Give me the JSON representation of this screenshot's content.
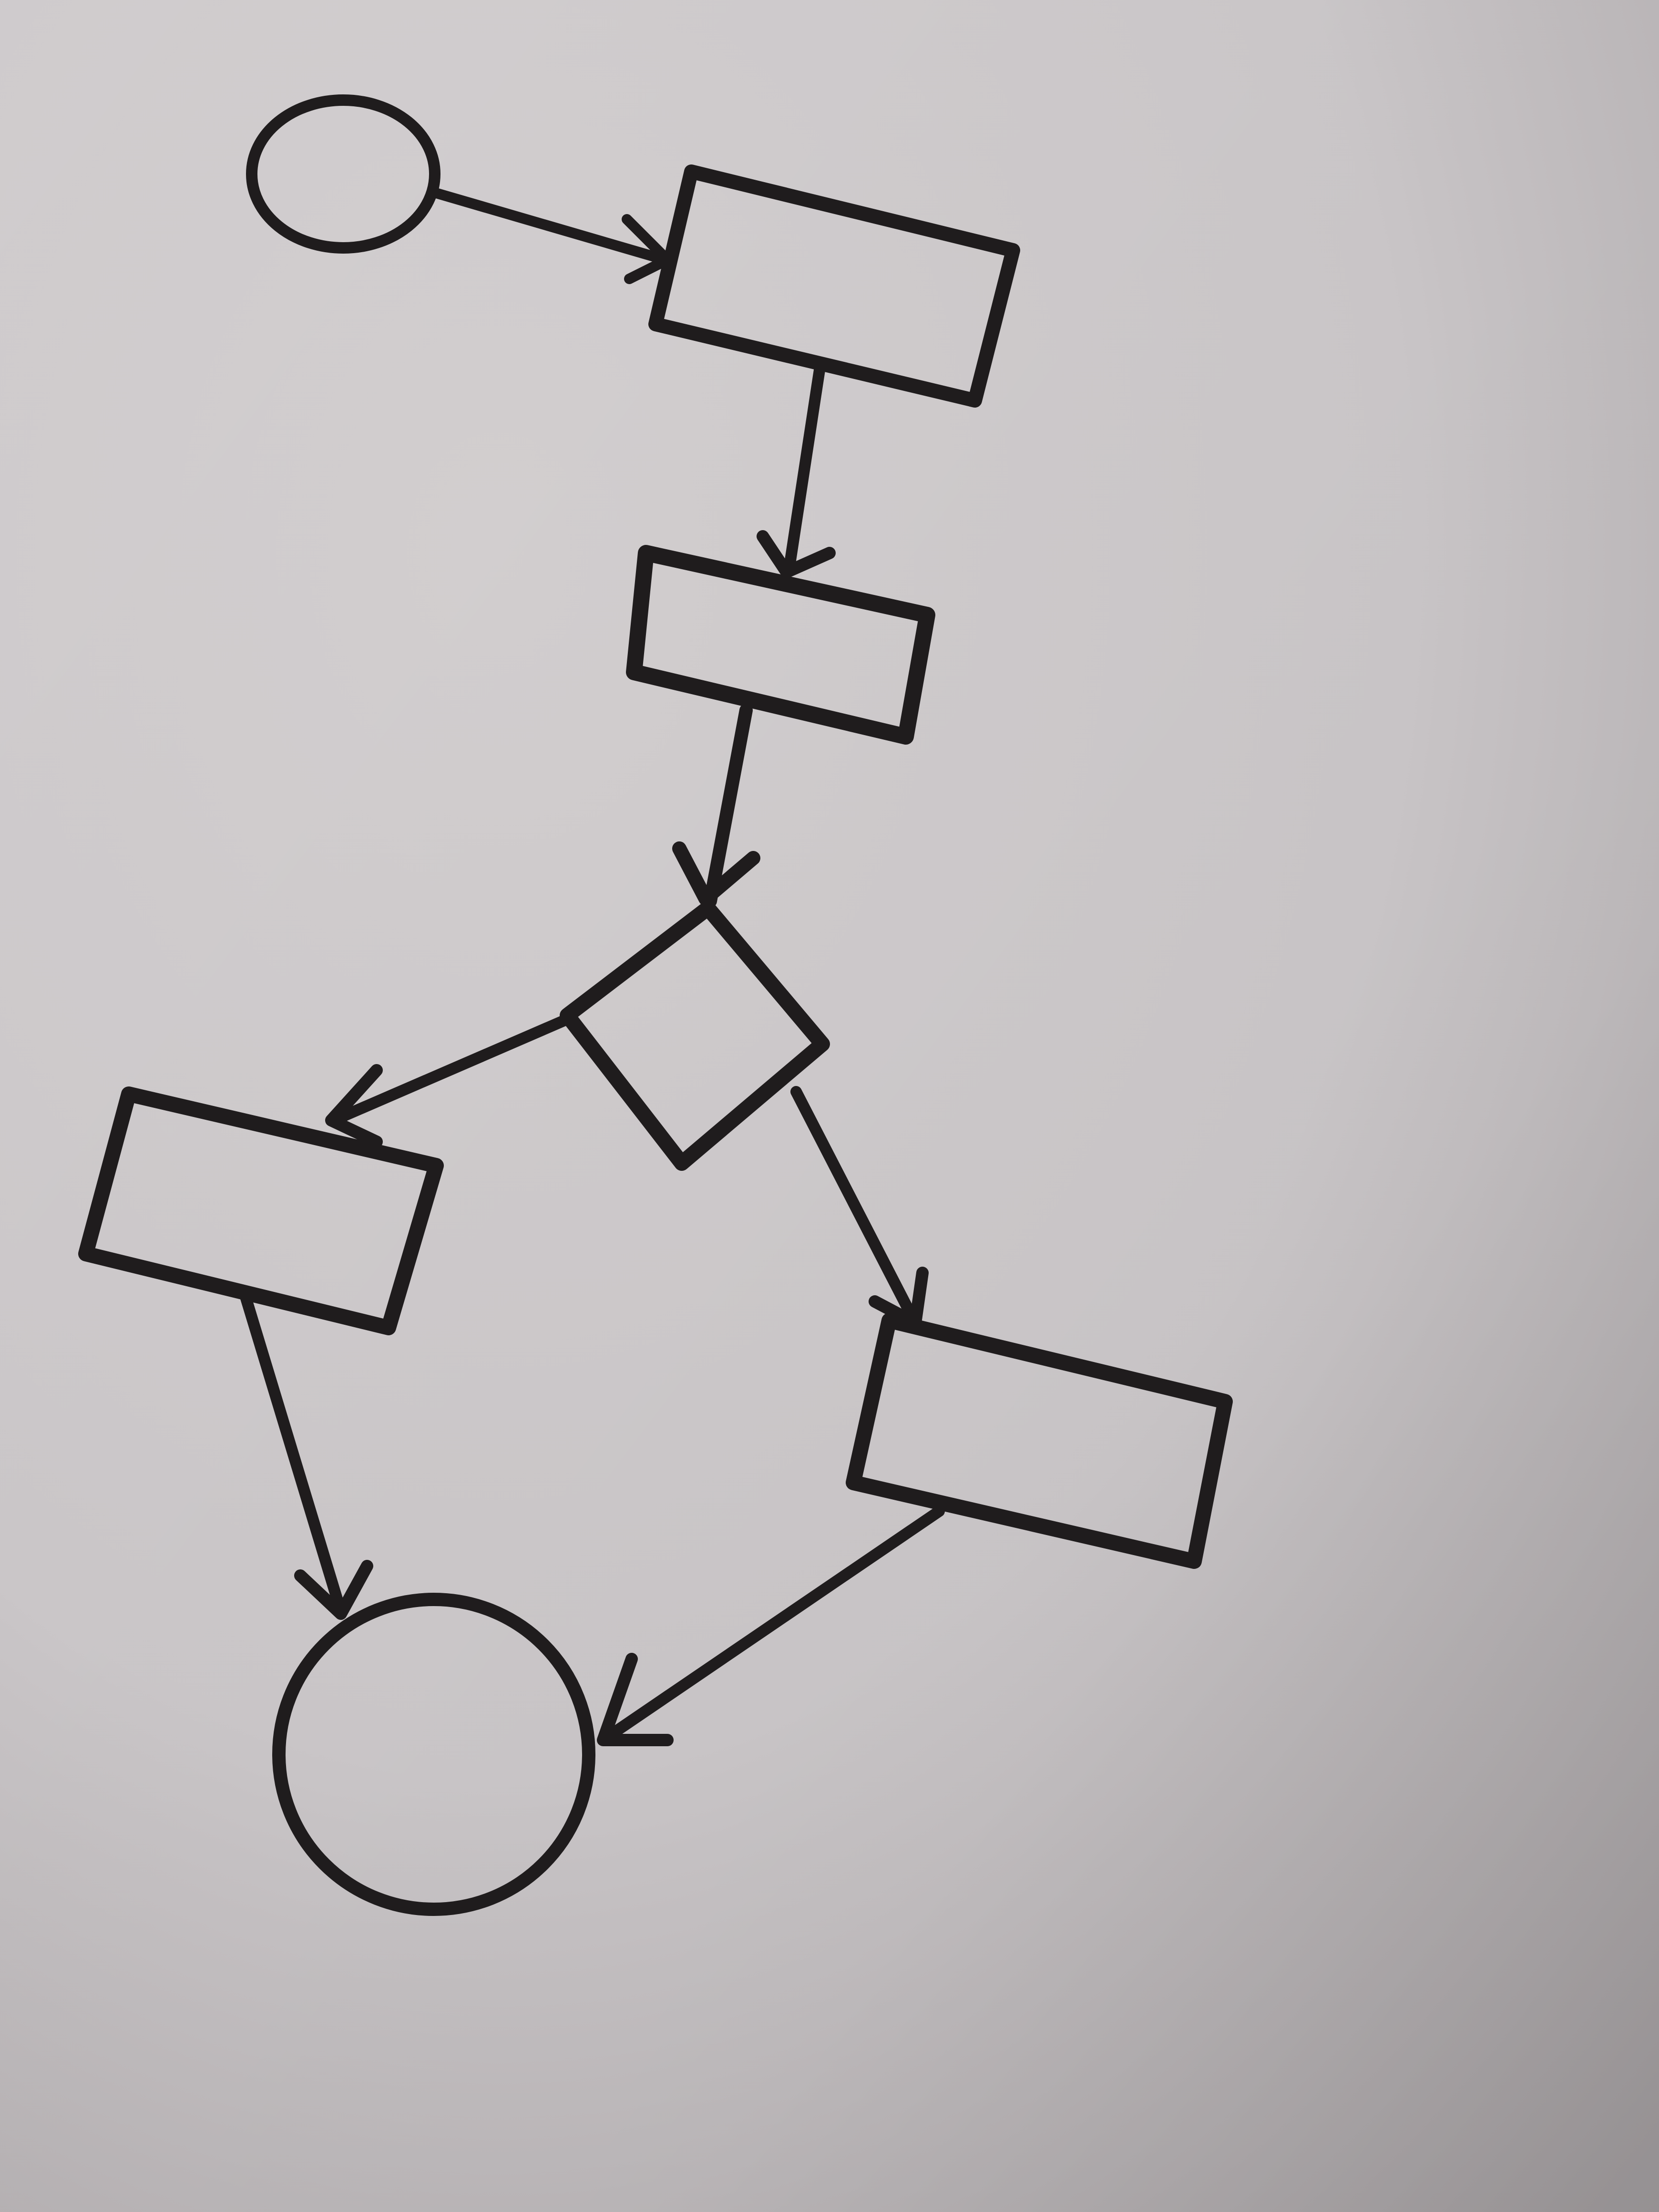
{
  "diagram": {
    "type": "flowchart",
    "style": "hand-drawn marker on paper",
    "labels": "none",
    "ink_color": "#1f1c1d",
    "paper_colors": {
      "top_left": "#d4d0d1",
      "center": "#cdc9cb",
      "bottom_right": "#aaa5a7"
    },
    "nodes": [
      {
        "id": "start",
        "shape": "ellipse",
        "role": "start terminal"
      },
      {
        "id": "step1",
        "shape": "rectangle",
        "role": "process"
      },
      {
        "id": "step2",
        "shape": "rectangle",
        "role": "process"
      },
      {
        "id": "decision",
        "shape": "diamond",
        "role": "decision"
      },
      {
        "id": "branch-left",
        "shape": "rectangle",
        "role": "process"
      },
      {
        "id": "branch-right",
        "shape": "rectangle",
        "role": "process"
      },
      {
        "id": "end",
        "shape": "circle",
        "role": "end terminal"
      }
    ],
    "edges": [
      {
        "from": "start",
        "to": "step1"
      },
      {
        "from": "step1",
        "to": "step2"
      },
      {
        "from": "step2",
        "to": "decision"
      },
      {
        "from": "decision",
        "to": "branch-left"
      },
      {
        "from": "decision",
        "to": "branch-right"
      },
      {
        "from": "branch-left",
        "to": "end"
      },
      {
        "from": "branch-right",
        "to": "end"
      }
    ]
  }
}
